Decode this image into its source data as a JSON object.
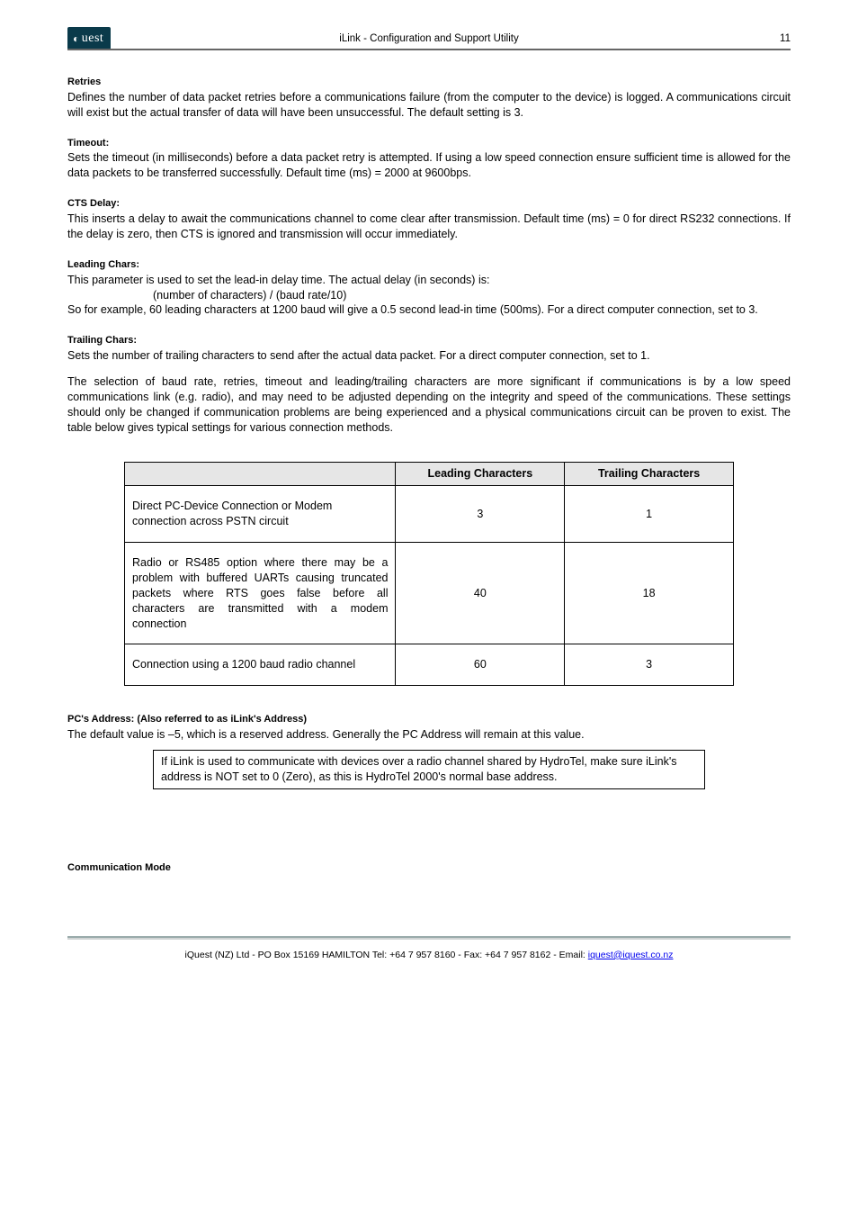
{
  "header": {
    "logo_text": "uest",
    "title": "iLink - Configuration and Support Utility",
    "page_number": "11"
  },
  "sections": {
    "retries": {
      "heading": "Retries",
      "body": "Defines the number of data packet retries before a communications failure (from the computer to the device) is logged.  A communications circuit will exist but the actual transfer of data will have been unsuccessful.  The default setting is 3."
    },
    "timeout": {
      "heading": "Timeout:",
      "body": "Sets the timeout (in milliseconds) before a data packet retry is attempted.  If using a low speed connection ensure sufficient time is allowed for the data packets to be transferred successfully.  Default time (ms) = 2000 at 9600bps."
    },
    "cts_delay": {
      "heading": "CTS Delay:",
      "body": "This inserts a delay to await the communications channel to come clear after transmission.  Default time (ms) = 0 for direct RS232 connections.  If the delay is zero, then CTS is ignored and transmission will occur immediately."
    },
    "leading_chars": {
      "heading": "Leading Chars:",
      "line1": "This parameter is used to set the lead-in delay time.  The actual delay (in seconds) is:",
      "formula": "(number of characters) / (baud rate/10)",
      "line2": "So for example, 60 leading characters at 1200 baud will give a 0.5 second lead-in time (500ms).  For a direct computer connection, set to 3."
    },
    "trailing_chars": {
      "heading": "Trailing Chars:",
      "line1": "Sets the number of trailing characters to send after the actual data packet.  For a direct computer connection, set to 1.",
      "line2": "The selection of baud rate, retries, timeout and leading/trailing characters are more significant if communications is by a low speed communications link (e.g. radio), and may need to be adjusted depending on the integrity and speed of the communications.  These settings should only be changed if communication problems are being experienced and a physical communications circuit can be proven to exist.  The table below gives typical settings for various connection methods."
    },
    "pc_address": {
      "heading": "PC's Address: (Also referred to as iLink's Address)",
      "body": "The default value is –5, which is a reserved address.  Generally the PC Address will remain at this value.",
      "note": "If iLink is used to communicate with devices over a radio channel shared by HydroTel, make sure iLink's address is NOT set to 0 (Zero), as this is HydroTel 2000's normal base address."
    },
    "comm_mode": {
      "heading": "Communication Mode"
    }
  },
  "table": {
    "col_blank": "",
    "col_leading": "Leading Characters",
    "col_trailing": "Trailing Characters",
    "rows": [
      {
        "label": "Direct PC-Device Connection or Modem connection across PSTN circuit",
        "leading": "3",
        "trailing": "1",
        "justify": false
      },
      {
        "label": "Radio or RS485 option where there may be a problem with buffered UARTs causing truncated packets where RTS goes false before all characters are transmitted with a modem connection",
        "leading": "40",
        "trailing": "18",
        "justify": true
      },
      {
        "label": "Connection using a 1200 baud radio channel",
        "leading": "60",
        "trailing": "3",
        "justify": true
      }
    ]
  },
  "footer": {
    "text_prefix": "iQuest (NZ) Ltd  - PO Box 15169 HAMILTON  Tel: +64 7 957 8160 - Fax: +64 7 957 8162 - Email: ",
    "email": "iquest@iquest.co.nz"
  }
}
